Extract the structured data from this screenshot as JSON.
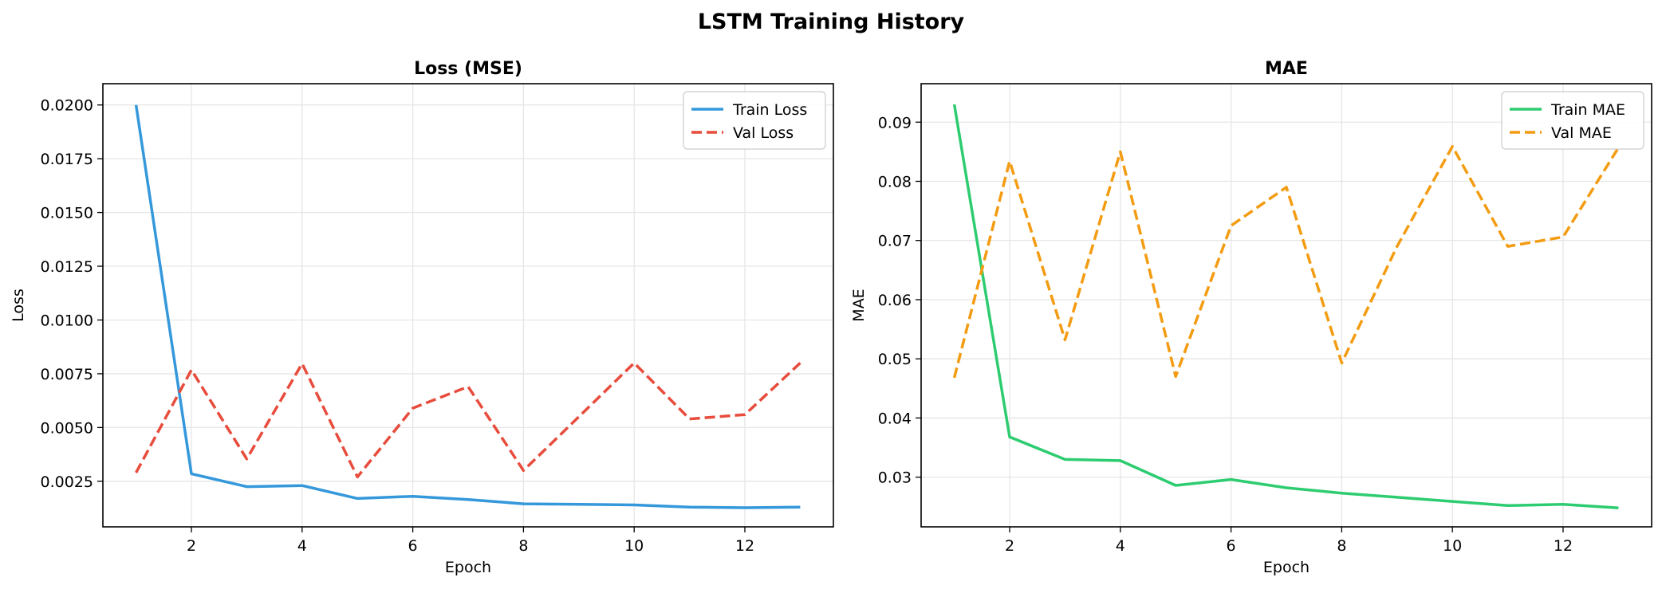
{
  "title": "LSTM Training History",
  "chart_data": [
    {
      "type": "line",
      "title": "Loss (MSE)",
      "xlabel": "Epoch",
      "ylabel": "Loss",
      "xlim": [
        0.4,
        13.6
      ],
      "ylim": [
        0.00038,
        0.02099
      ],
      "xticks": [
        2,
        4,
        6,
        8,
        10,
        12
      ],
      "yticks": [
        0.0025,
        0.005,
        0.0075,
        0.01,
        0.0125,
        0.015,
        0.0175,
        0.02
      ],
      "ytick_labels": [
        "0.0025",
        "0.0050",
        "0.0075",
        "0.0100",
        "0.0125",
        "0.0150",
        "0.0175",
        "0.0200"
      ],
      "grid": true,
      "legend": "top-right",
      "x": [
        1,
        2,
        3,
        4,
        5,
        6,
        7,
        8,
        9,
        10,
        11,
        12,
        13
      ],
      "series": [
        {
          "name": "Train Loss",
          "color": "#3498db",
          "dash": "solid",
          "values": [
            0.02,
            0.00285,
            0.00225,
            0.0023,
            0.0017,
            0.0018,
            0.00165,
            0.00145,
            0.00143,
            0.0014,
            0.0013,
            0.00127,
            0.0013
          ]
        },
        {
          "name": "Val Loss",
          "color": "#e74c3c",
          "dash": "dashed",
          "values": [
            0.0029,
            0.00768,
            0.00354,
            0.00797,
            0.0027,
            0.0059,
            0.0069,
            0.003,
            0.0055,
            0.008,
            0.0054,
            0.0056,
            0.008
          ]
        }
      ]
    },
    {
      "type": "line",
      "title": "MAE",
      "xlabel": "Epoch",
      "ylabel": "MAE",
      "xlim": [
        0.4,
        13.6
      ],
      "ylim": [
        0.0216,
        0.0965
      ],
      "xticks": [
        2,
        4,
        6,
        8,
        10,
        12
      ],
      "yticks": [
        0.03,
        0.04,
        0.05,
        0.06,
        0.07,
        0.08,
        0.09
      ],
      "ytick_labels": [
        "0.03",
        "0.04",
        "0.05",
        "0.06",
        "0.07",
        "0.08",
        "0.09"
      ],
      "grid": true,
      "legend": "top-right",
      "x": [
        1,
        2,
        3,
        4,
        5,
        6,
        7,
        8,
        9,
        10,
        11,
        12,
        13
      ],
      "series": [
        {
          "name": "Train MAE",
          "color": "#2ecc71",
          "dash": "solid",
          "values": [
            0.093,
            0.0368,
            0.033,
            0.0328,
            0.0286,
            0.0296,
            0.0282,
            0.0273,
            0.0266,
            0.0259,
            0.0252,
            0.0254,
            0.0248
          ]
        },
        {
          "name": "Val MAE",
          "color": "#f39c12",
          "dash": "dashed",
          "values": [
            0.0468,
            0.0834,
            0.0532,
            0.085,
            0.047,
            0.0725,
            0.079,
            0.0493,
            0.069,
            0.0859,
            0.069,
            0.0706,
            0.0857
          ]
        }
      ]
    }
  ]
}
